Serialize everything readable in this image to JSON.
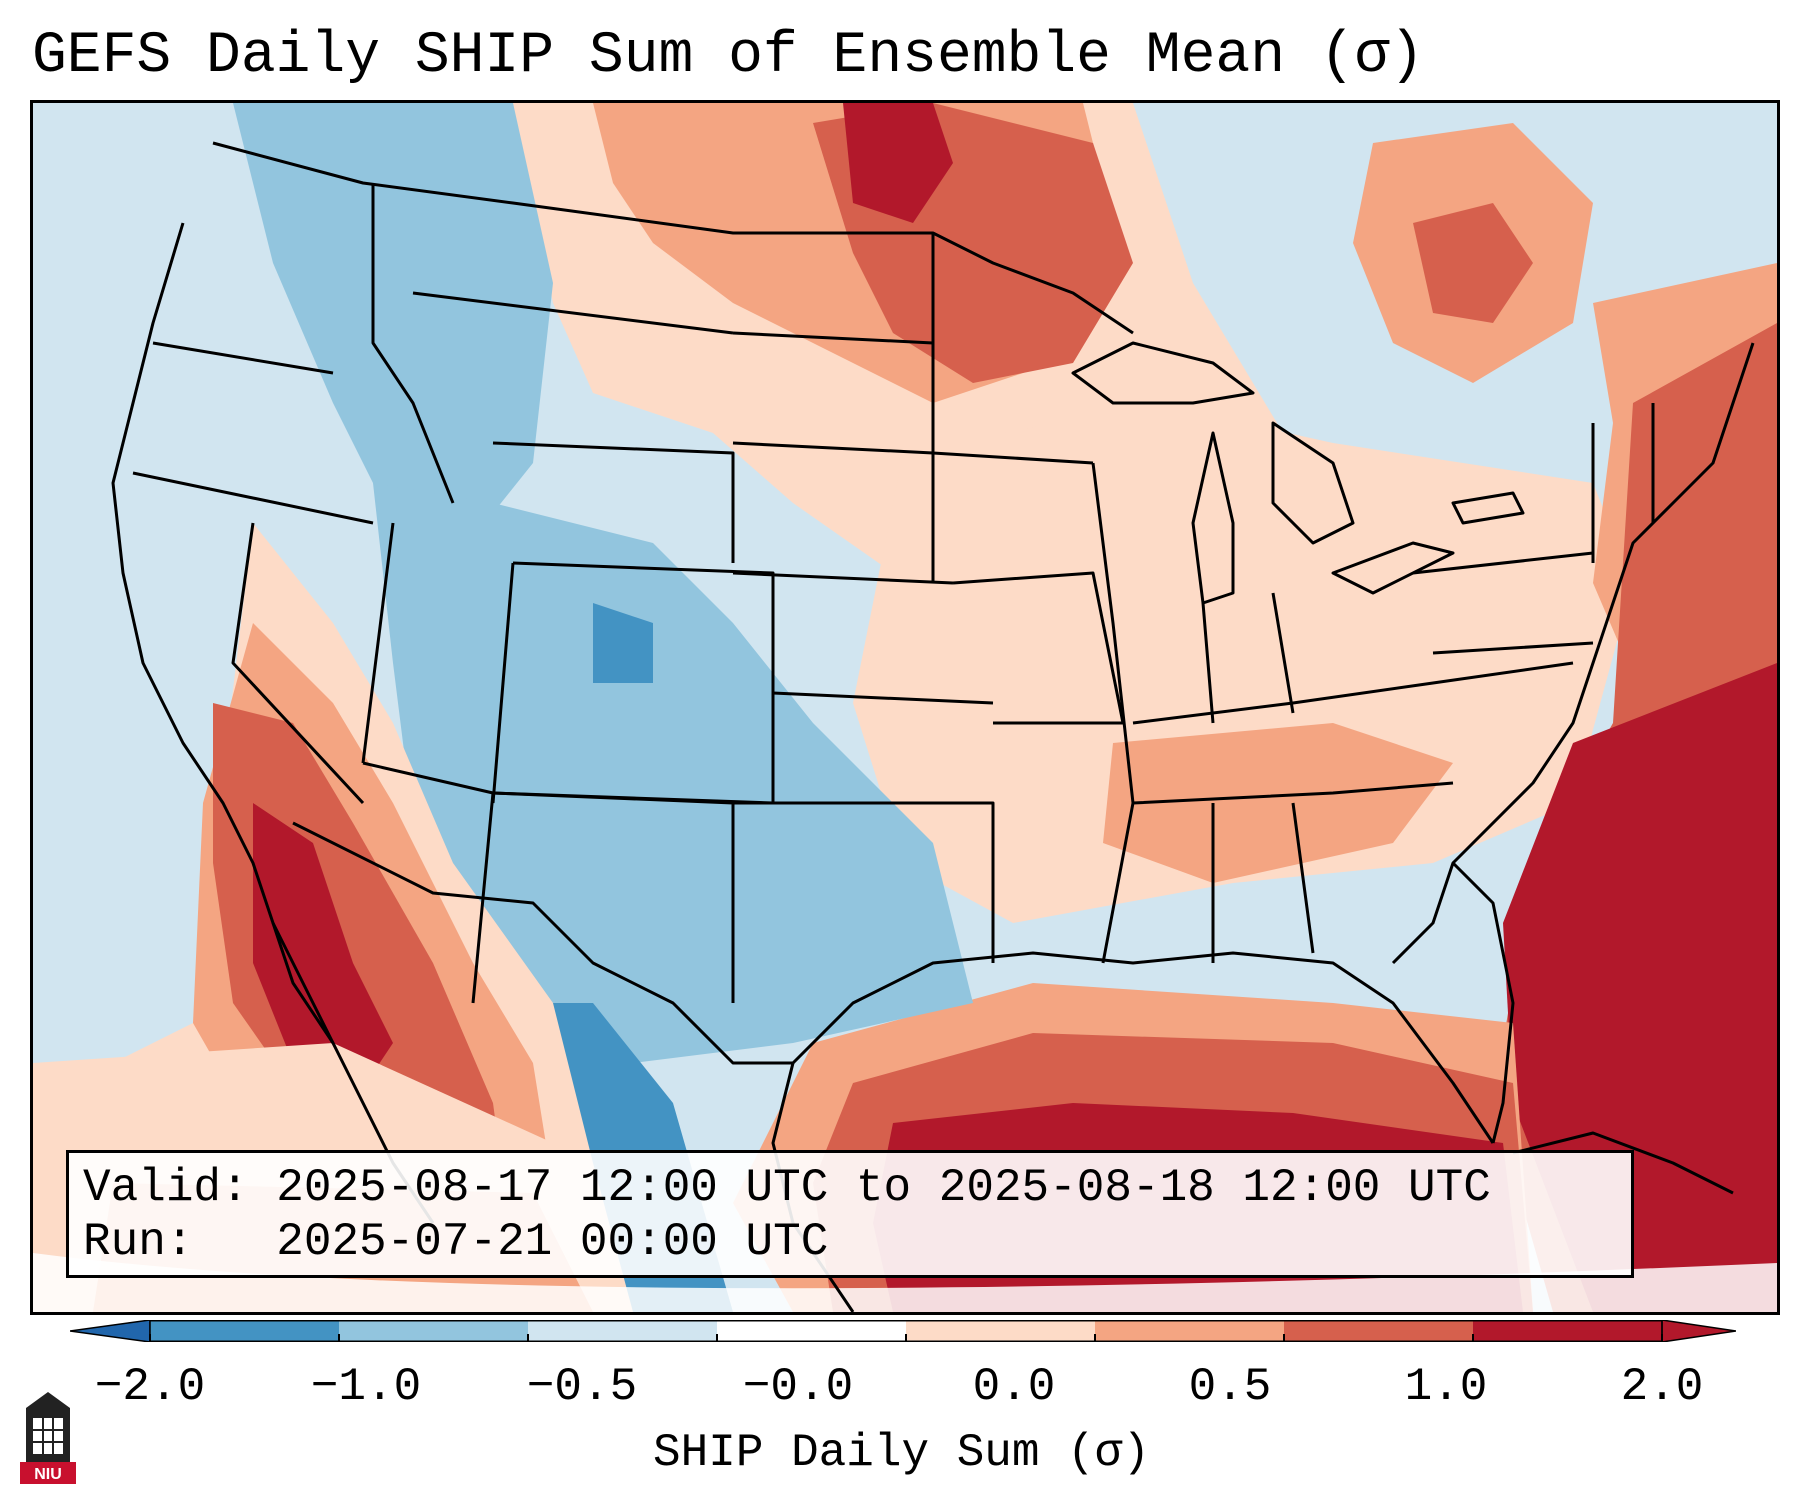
{
  "header": {
    "title": "GEFS Daily SHIP Sum of Ensemble Mean (σ)"
  },
  "info": {
    "valid_line": "Valid: 2025-08-17 12:00 UTC to 2025-08-18 12:00 UTC",
    "run_line": "Run:   2025-07-21 00:00 UTC"
  },
  "colorbar": {
    "label": "SHIP Daily Sum (σ)",
    "ticks": [
      "−2.0",
      "−1.0",
      "−0.5",
      "−0.0",
      "0.0",
      "0.5",
      "1.0",
      "2.0"
    ],
    "colors": [
      "#4393c3",
      "#92c5de",
      "#d1e5f0",
      "#ffffff",
      "#fddbc7",
      "#f4a582",
      "#d6604d",
      "#b2182b"
    ],
    "under_color": "#2166ac",
    "over_color": "#b2182b"
  },
  "logo": {
    "text": "NIU"
  },
  "map": {
    "palette": {
      "dblue": "#4393c3",
      "blue": "#92c5de",
      "lblue": "#d1e5f0",
      "white": "#ffffff",
      "peach": "#fddbc7",
      "salmon": "#f4a582",
      "red": "#d6604d",
      "dred": "#b2182b",
      "outline": "#000000"
    }
  }
}
